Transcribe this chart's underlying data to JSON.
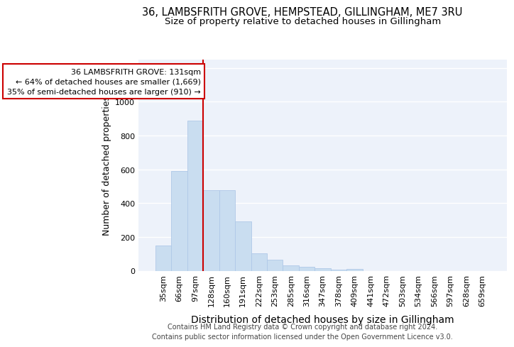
{
  "title_line1": "36, LAMBSFRITH GROVE, HEMPSTEAD, GILLINGHAM, ME7 3RU",
  "title_line2": "Size of property relative to detached houses in Gillingham",
  "xlabel": "Distribution of detached houses by size in Gillingham",
  "ylabel": "Number of detached properties",
  "bar_color": "#c9ddf0",
  "bar_edge_color": "#afc8e8",
  "categories": [
    "35sqm",
    "66sqm",
    "97sqm",
    "128sqm",
    "160sqm",
    "191sqm",
    "222sqm",
    "253sqm",
    "285sqm",
    "316sqm",
    "347sqm",
    "378sqm",
    "409sqm",
    "441sqm",
    "472sqm",
    "503sqm",
    "534sqm",
    "566sqm",
    "597sqm",
    "628sqm",
    "659sqm"
  ],
  "values": [
    150,
    590,
    890,
    475,
    475,
    290,
    105,
    65,
    30,
    25,
    15,
    5,
    10,
    0,
    0,
    0,
    0,
    0,
    0,
    0,
    0
  ],
  "ylim": [
    0,
    1250
  ],
  "yticks": [
    0,
    200,
    400,
    600,
    800,
    1000,
    1200
  ],
  "property_line_bin": 3,
  "annotation_title": "36 LAMBSFRITH GROVE: 131sqm",
  "annotation_line2": "← 64% of detached houses are smaller (1,669)",
  "annotation_line3": "35% of semi-detached houses are larger (910) →",
  "annotation_box_edgecolor": "#cc0000",
  "footnote1": "Contains HM Land Registry data © Crown copyright and database right 2024.",
  "footnote2": "Contains public sector information licensed under the Open Government Licence v3.0.",
  "background_color": "#edf2fa",
  "grid_color": "#ffffff",
  "title1_fontsize": 10.5,
  "title2_fontsize": 9.5,
  "ylabel_fontsize": 9,
  "xlabel_fontsize": 10,
  "tick_fontsize": 8,
  "annotation_fontsize": 8,
  "footnote_fontsize": 7
}
